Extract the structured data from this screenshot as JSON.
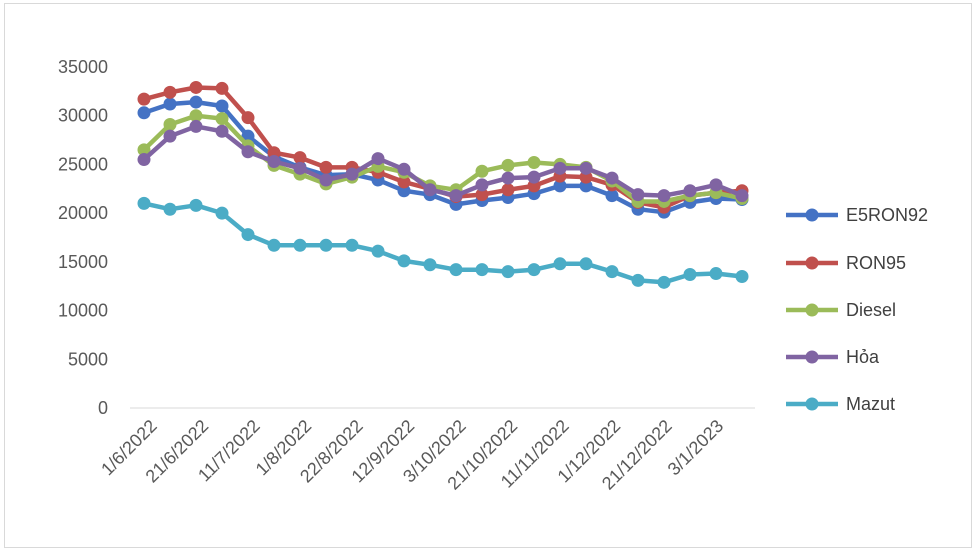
{
  "chart_data": {
    "type": "line",
    "title": "",
    "xlabel": "",
    "ylabel": "",
    "ylim": [
      0,
      35000
    ],
    "yticks": [
      0,
      5000,
      10000,
      15000,
      20000,
      25000,
      30000,
      35000
    ],
    "grid": false,
    "legend_position": "right",
    "x_tick_labels": [
      "1/6/2022",
      "21/6/2022",
      "11/7/2022",
      "1/8/2022",
      "22/8/2022",
      "12/9/2022",
      "3/10/2022",
      "21/10/2022",
      "11/11/2022",
      "1/12/2022",
      "21/12/2022",
      "3/1/2023"
    ],
    "series": [
      {
        "name": "E5RON92",
        "color": "#4472c4",
        "values": [
          30300,
          31200,
          31400,
          31000,
          27900,
          25800,
          24700,
          23900,
          24000,
          23400,
          22300,
          21900,
          20900,
          21300,
          21600,
          22000,
          22800,
          22800,
          21800,
          20400,
          20100,
          21100,
          21500,
          21400
        ]
      },
      {
        "name": "RON95",
        "color": "#c0504d",
        "values": [
          31700,
          32400,
          32900,
          32800,
          29800,
          26200,
          25700,
          24700,
          24700,
          24200,
          23200,
          22500,
          21700,
          21900,
          22400,
          22800,
          23800,
          23700,
          22900,
          21100,
          20600,
          21800,
          22100,
          22300
        ]
      },
      {
        "name": "Diesel",
        "color": "#9bbb59",
        "values": [
          26500,
          29100,
          30000,
          29700,
          26900,
          24900,
          24000,
          23000,
          23700,
          24800,
          24200,
          22800,
          22400,
          24300,
          24900,
          25200,
          25000,
          24700,
          23300,
          21200,
          21200,
          21800,
          22100,
          21500
        ]
      },
      {
        "name": "Hỏa",
        "color": "#8064a2",
        "values": [
          25500,
          27900,
          28900,
          28400,
          26300,
          25300,
          24600,
          23400,
          24000,
          25600,
          24500,
          22400,
          21800,
          22900,
          23600,
          23700,
          24600,
          24600,
          23600,
          21900,
          21800,
          22300,
          22900,
          21800
        ]
      },
      {
        "name": "Mazut",
        "color": "#4bacc6",
        "values": [
          21000,
          20400,
          20800,
          20000,
          17800,
          16700,
          16700,
          16700,
          16700,
          16100,
          15100,
          14700,
          14200,
          14200,
          14000,
          14200,
          14800,
          14800,
          14000,
          13100,
          12900,
          13700,
          13800,
          13500
        ]
      }
    ]
  }
}
